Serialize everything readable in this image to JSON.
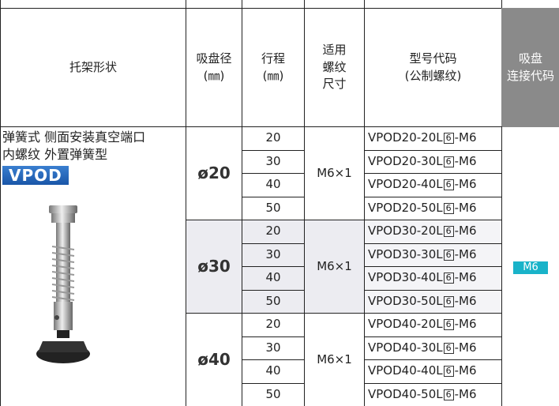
{
  "header": {
    "columns": [
      [
        "托架形状"
      ],
      [
        "吸盘径",
        "(㎜)"
      ],
      [
        "行程",
        "(㎜)"
      ],
      [
        "适用",
        "螺纹",
        "尺寸"
      ],
      [
        "型号代码",
        "(公制螺纹)"
      ],
      [
        "吸盘",
        "连接代码"
      ]
    ]
  },
  "product": {
    "lines": [
      "弹簧式 侧面安装真空端口",
      "内螺纹 外置弹簧型"
    ],
    "badge": "VPOD"
  },
  "groups": [
    {
      "diameter": "ø20",
      "thread": "M6×1",
      "strokes": [
        "20",
        "30",
        "40",
        "50"
      ],
      "models": [
        {
          "pre": "VPOD20-20L",
          "box": "6",
          "post": "-M6"
        },
        {
          "pre": "VPOD20-30L",
          "box": "6",
          "post": "-M6"
        },
        {
          "pre": "VPOD20-40L",
          "box": "6",
          "post": "-M6"
        },
        {
          "pre": "VPOD20-50L",
          "box": "6",
          "post": "-M6"
        }
      ]
    },
    {
      "diameter": "ø30",
      "thread": "M6×1",
      "strokes": [
        "20",
        "30",
        "40",
        "50"
      ],
      "models": [
        {
          "pre": "VPOD30-20L",
          "box": "6",
          "post": "-M6"
        },
        {
          "pre": "VPOD30-30L",
          "box": "6",
          "post": "-M6"
        },
        {
          "pre": "VPOD30-40L",
          "box": "6",
          "post": "-M6"
        },
        {
          "pre": "VPOD30-50L",
          "box": "6",
          "post": "-M6"
        }
      ]
    },
    {
      "diameter": "ø40",
      "thread": "M6×1",
      "strokes": [
        "20",
        "30",
        "40",
        "50"
      ],
      "models": [
        {
          "pre": "VPOD40-20L",
          "box": "6",
          "post": "-M6"
        },
        {
          "pre": "VPOD40-30L",
          "box": "6",
          "post": "-M6"
        },
        {
          "pre": "VPOD40-40L",
          "box": "6",
          "post": "-M6"
        },
        {
          "pre": "VPOD40-50L",
          "box": "6",
          "post": "-M6"
        }
      ]
    }
  ],
  "connection_code": "M6"
}
